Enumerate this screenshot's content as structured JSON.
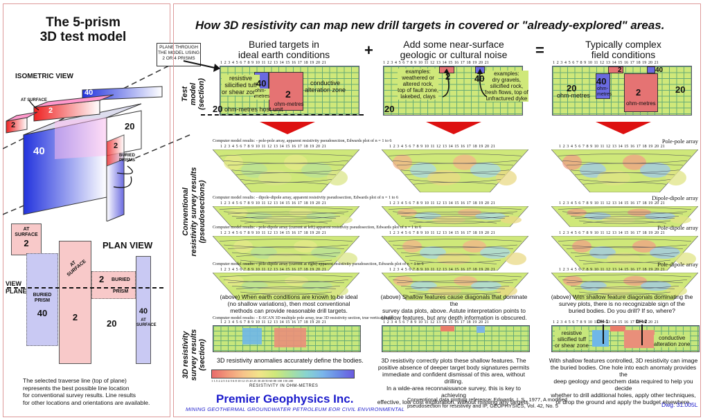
{
  "left": {
    "title_l1": "The 5-prism",
    "title_l2": "3D test model",
    "plane_note_l1": "PLANE THROUGH",
    "plane_note_l2": "THE MODEL USING",
    "plane_note_l3": "2  OR  4  PRISMS",
    "isometric_label": "ISOMETRIC VIEW",
    "at_surface": "AT SURFACE",
    "iso_val_40": "40",
    "iso_val_2a": "2",
    "iso_val_2b": "2",
    "iso_val_20": "20",
    "iso_val_40b": "40",
    "iso_val_2c": "2",
    "buried_prisms_l1": "BURIED",
    "buried_prisms_l2": "PRISMS",
    "plan_view_label": "PLAN VIEW",
    "view_plane_l1": "VIEW",
    "view_plane_l2": "PLANE",
    "plan_at_surface_1a": "AT",
    "plan_at_surface_1b": "SURFACE",
    "plan_val_2a": "2",
    "plan_buried_prism": "BURIED\nPRISM",
    "plan_val_40a": "40",
    "plan_at_surface_2": "AT\nSURFACE",
    "plan_val_2b": "2",
    "plan_val_2c": "2",
    "plan_buried_2a": "BURIED",
    "plan_buried_2b": "PRISM",
    "plan_val_20": "20",
    "plan_val_40b": "40",
    "plan_at_surface_3": "AT\nSURFACE",
    "note_l1": "The selected  traverse line (top of plane)",
    "note_l2": "represents the best possible line location",
    "note_l3": "for conventional survey results.  Line results",
    "note_l4": "for other locations and orientations are available."
  },
  "main": {
    "headline": "How 3D resistivity can map new drill targets in covered or \"already-explored\" areas.",
    "col1_head_l1": "Buried targets in",
    "col1_head_l2": "ideal earth conditions",
    "plus": "+",
    "col2_head_l1": "Add some near-surface",
    "col2_head_l2": "geologic or cultural noise",
    "equals": "=",
    "col3_head_l1": "Typically complex",
    "col3_head_l2": "field conditions",
    "row1_label_l1": "Test",
    "row1_label_l2": "model",
    "row1_label_l3": "(section)",
    "row2_label_l1": "Conventional",
    "row2_label_l2": "resistivity survey results",
    "row2_label_l3": "(pseudosections)",
    "row3_label_l1": "3D resistivity",
    "row3_label_l2": "survey results",
    "row3_label_l3": "(section)",
    "scale_numbers": "1  2  3  4  5  6  7  8  9  10  11  12  13  14  15  16  17  18  19  20  21"
  },
  "model1": {
    "resistive_l1": "resistive",
    "resistive_l2": "silicified tuff",
    "resistive_l3": "or shear zone",
    "val40": "40",
    "ohm_l1": "ohm-",
    "ohm_l2": "metres",
    "val2": "2",
    "ohm_metres": "ohm-metres",
    "conductive_l1": "conductive",
    "conductive_l2": "alteration zone",
    "host": "20",
    "host_unit": "ohm-metres host unit"
  },
  "model2": {
    "ex1_l1": "examples:",
    "ex1_l2": "weathered or",
    "ex1_l3": "altered rock,",
    "ex1_l4": "top of fault zone,",
    "ex1_l5": "lakebed, clays",
    "val2": "2",
    "val40": "40",
    "ex2_l1": "examples:",
    "ex2_l2": "dry gravels,",
    "ex2_l3": "silicified rock,",
    "ex2_l4": "fresh flows, top of",
    "ex2_l5": "unfractured dyke",
    "val20": "20"
  },
  "model3": {
    "val2top": "2",
    "val40top": "40",
    "val20a": "20",
    "ohm_a": "ohm-metres",
    "val40": "40",
    "ohm_b1": "ohm-",
    "ohm_b2": "metres",
    "val2": "2",
    "ohm_c": "ohm-metres",
    "val20b": "20"
  },
  "pseudo": {
    "r1_caption": "Computer model results: - pole-pole array, apparent resistivity pseudosection, Edwards plot of n = 1 to 6",
    "r1_type": "Pole-pole array",
    "r2_caption": "Computer model results: - dipole-dipole array, apparent resistivity pseudosection, Edwards plot of n = 1 to 6",
    "r2_type": "Dipole-dipole array",
    "r3_caption": "Computer model results: - pole-dipole array (current at left) apparent resistivity pseudosection, Edwards plot of n = 1 to 6",
    "r3_type": "Pole-dipole array",
    "r4_caption": "Computer model results: - pole-dipole array (current at right) apparent resistivity pseudosection, Edwards plot of n = 1 to 6",
    "r4_type": "Pole-dipole array",
    "r5_caption": "Computer model results: - E-SCAN 3D multiple pole array, true 3D resistivity section, true vertical scale"
  },
  "captions": {
    "c1_l1": "(above) When earth conditions are known to be ideal",
    "c1_l2": "(no shallow variations), then most conventional",
    "c1_l3": "methods can provide reasonable drill targets.",
    "c2_l1": "(above) Shallow features cause diagonals that dominate the",
    "c2_l2": "survey data plots, above.  Astute interpretation points to",
    "c2_l3": "shallow features, but any depth information is obscured.",
    "c3_l1": "(above) With shallow feature diagonals dominating the",
    "c3_l2": "survey plots, there is no recognizable sign of the",
    "c3_l3": "buried bodies.    Do you drill?  If so, where?"
  },
  "sec3d": {
    "dh1": "DH-1",
    "dh2": "DH-2",
    "res_l1": "resistive",
    "res_l2": "silicified tuff",
    "res_l3": "or shear zone",
    "cond_l1": "conductive",
    "cond_l2": "alteration zone"
  },
  "bottom": {
    "b1": "3D resistivity anomalies accurately define the bodies.",
    "b2_l1": "3D resistivity correctly plots these shallow features.  The",
    "b2_l2": "positive absence of deeper target body signatures permits",
    "b2_l3": "immediate and confident dismissal of this area, without drilling.",
    "b2_l4": "In a wide-area reconnaissance survey, this is key to achieving",
    "b2_l5": "effective, low cost exploration, without missing any targets.",
    "b3_l1": "With shallow features controlled, 3D resistivity can image",
    "b3_l2": "the buried bodies.  One hole into each anomaly provides the",
    "b3_l3": "deep geology and geochem data required to help you decide",
    "b3_l4": "whether to drill additional holes, apply other techniques,",
    "b3_l5": "or drop the ground and apply the budget elsewhere.",
    "colorbar_ticks": "1  1.5  2  2.5  3  4  5  6  8  10  12  15  20  25  30  40  50  60  80  100  150  200",
    "colorbar_label": "RESISTIVITY  IN  OHM-METRES",
    "brand": "Premier Geophysics Inc.",
    "tagline": "MINING   GEOTHERMAL   GROUNDWATER   PETROLEUM   EOR   CIVIL   ENVIRONMENTAL",
    "ref_l1": "Conventional data plotting reference: Edwards, L.S., 1977, A modified",
    "ref_l2": "pseudosection for resistivity and IP, GEOPHYSICS, Vol. 42, No. 5",
    "dwg": "Dwg. 31.005L"
  },
  "colors": {
    "host": "#cfe87a",
    "conductive": "#e57373",
    "resistive": "#6a6ae0",
    "border": "#dd9999",
    "brand": "#1a1acc",
    "arrow": "#dd1111"
  }
}
